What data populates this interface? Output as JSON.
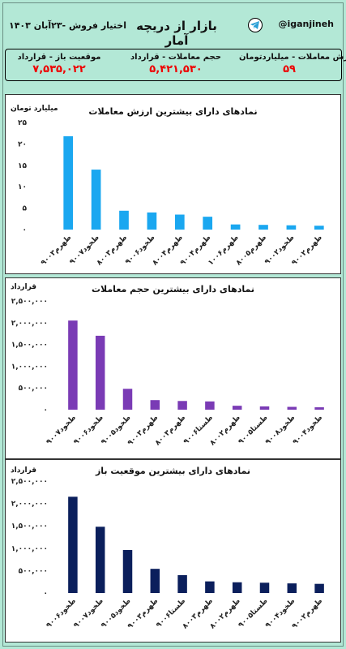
{
  "header": {
    "title": "بازار از دریچه آمار",
    "subtitle": "اختیار فروش -۲۳آبان ۱۴۰۳",
    "handle": "@iganjineh"
  },
  "stats": {
    "value_label": "ارزش معاملات - میلیاردتومان",
    "value": "۵۹",
    "volume_label": "حجم معاملات - قرارداد",
    "volume": "۵,۴۲۱,۵۳۰",
    "oi_label": "موقعیت باز - قرارداد",
    "oi": "۷,۵۳۵,۰۲۲"
  },
  "chart_data": [
    {
      "type": "bar",
      "title": "نمادهای دارای بیشترین  ارزش معاملات",
      "ylabel": "میلیارد تومان",
      "color": "#1aa7f0",
      "ylim": [
        0,
        25
      ],
      "yticks": [
        "۰",
        "۵",
        "۱۰",
        "۱۵",
        "۲۰",
        "۲۵"
      ],
      "categories": [
        "طهرم۹۰۰۳",
        "طخود۹۰۰۷",
        "طهرم۸۰۰۳",
        "طخود۹۰۰۶",
        "طهرم۸۰۰۴",
        "طهرم۹۰۰۴",
        "طهرم۱۰۰۶",
        "طهرم۸۰۰۵",
        "طخود۹۰۰۲",
        "طهرم۹۰۰۲"
      ],
      "values": [
        21.8,
        14.0,
        4.4,
        4.0,
        3.5,
        3.0,
        1.2,
        1.1,
        1.0,
        0.9
      ]
    },
    {
      "type": "bar",
      "title": "نمادهای دارای بیشترین حجم معاملات",
      "ylabel": "قرارداد",
      "color": "#7a3bb5",
      "ylim": [
        0,
        2500000
      ],
      "yticks": [
        "۰",
        "۵۰۰,۰۰۰",
        "۱,۰۰۰,۰۰۰",
        "۱,۵۰۰,۰۰۰",
        "۲,۰۰۰,۰۰۰",
        "۲,۵۰۰,۰۰۰"
      ],
      "categories": [
        "طخود۹۰۰۷",
        "طخود۹۰۰۶",
        "طخود۹۰۰۵",
        "طهرم۹۰۰۳",
        "طهرم۸۰۰۳",
        "طستا۹۰۰۶",
        "طهرم۸۰۰۲",
        "طستا۹۰۰۵",
        "طخود۹۰۰۸",
        "طخود۹۰۰۴"
      ],
      "values": [
        2050000,
        1700000,
        480000,
        220000,
        200000,
        190000,
        90000,
        75000,
        65000,
        55000
      ]
    },
    {
      "type": "bar",
      "title": "نمادهای دارای بیشترین  موقعیت باز",
      "ylabel": "قرارداد",
      "color": "#0b1f5c",
      "ylim": [
        0,
        2500000
      ],
      "yticks": [
        "۰",
        "۵۰۰,۰۰۰",
        "۱,۰۰۰,۰۰۰",
        "۱,۵۰۰,۰۰۰",
        "۲,۰۰۰,۰۰۰",
        "۲,۵۰۰,۰۰۰"
      ],
      "categories": [
        "طخود۹۰۰۶",
        "طخود۹۰۰۷",
        "طخود۹۰۰۵",
        "طهرم۹۰۰۳",
        "طستا۹۰۰۶",
        "طهرم۸۰۰۳",
        "طهرم۸۰۰۲",
        "طستا۹۰۰۵",
        "طخود۹۰۰۴",
        "طهرم۹۰۰۲"
      ],
      "values": [
        2150000,
        1480000,
        960000,
        540000,
        400000,
        260000,
        240000,
        230000,
        215000,
        205000
      ]
    }
  ]
}
